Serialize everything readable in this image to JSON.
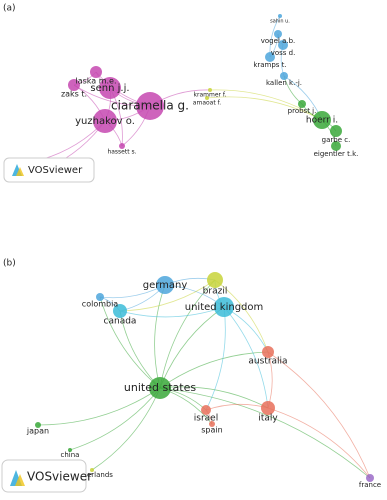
{
  "panels": [
    {
      "label": "(a)",
      "logo": "VOSviewer",
      "nodes": [
        {
          "label": "sahin u."
        },
        {
          "label": "vogel a.b."
        },
        {
          "label": "voss d."
        },
        {
          "label": "kramps t."
        },
        {
          "label": "kallen k.-j."
        },
        {
          "label": "krammer f."
        },
        {
          "label": "amaoat f."
        },
        {
          "label": "probst j."
        },
        {
          "label": "hoerr i."
        },
        {
          "label": "garbe c."
        },
        {
          "label": "eigentler t.k."
        },
        {
          "label": "laska m.e."
        },
        {
          "label": "zaks t."
        },
        {
          "label": "senn j.j."
        },
        {
          "label": "ciaramella g."
        },
        {
          "label": "yuzhakov o."
        },
        {
          "label": "hassett s."
        },
        {
          "label": "geall a.j."
        },
        {
          "label": "mason p.w."
        }
      ]
    },
    {
      "label": "(b)",
      "logo": "VOSviewer",
      "nodes": [
        {
          "label": "brazil"
        },
        {
          "label": "germany"
        },
        {
          "label": "colombia"
        },
        {
          "label": "canada"
        },
        {
          "label": "united kingdom"
        },
        {
          "label": "australia"
        },
        {
          "label": "united states"
        },
        {
          "label": "israel"
        },
        {
          "label": "italy"
        },
        {
          "label": "spain"
        },
        {
          "label": "japan"
        },
        {
          "label": "china"
        },
        {
          "label": "netherlands"
        },
        {
          "label": "france"
        }
      ]
    }
  ]
}
